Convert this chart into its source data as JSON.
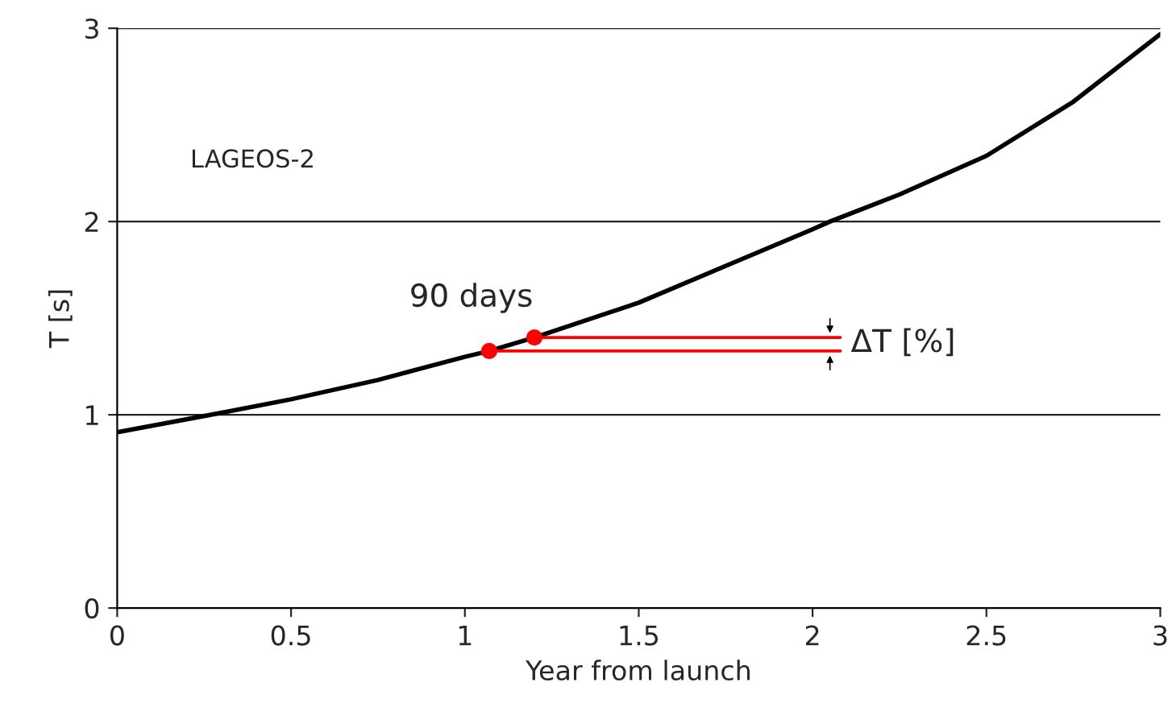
{
  "chart_data": {
    "type": "line",
    "xlabel": "Year from launch",
    "ylabel": "T [s]",
    "xlim": [
      0,
      3
    ],
    "ylim": [
      0,
      3
    ],
    "xticks": [
      0,
      0.5,
      1,
      1.5,
      2,
      2.5,
      3
    ],
    "yticks": [
      0,
      1,
      2,
      3
    ],
    "grid": "y",
    "series": [
      {
        "color": "#000000",
        "x": [
          0,
          0.27,
          0.5,
          0.75,
          1.0,
          1.07,
          1.2,
          1.5,
          1.75,
          2.0,
          2.05,
          2.25,
          2.5,
          2.75,
          3.0
        ],
        "values": [
          0.91,
          1.0,
          1.08,
          1.18,
          1.3,
          1.33,
          1.4,
          1.58,
          1.77,
          1.96,
          2.0,
          2.14,
          2.34,
          2.62,
          2.97
        ]
      },
      {
        "color": "#ff0000",
        "x": [
          1.07,
          2.08
        ],
        "values": [
          1.33,
          1.33
        ]
      },
      {
        "color": "#ff0000",
        "x": [
          1.2,
          2.08
        ],
        "values": [
          1.4,
          1.4
        ]
      },
      {
        "type": "scatter",
        "color": "#ff0000",
        "x": [
          1.07,
          1.2
        ],
        "values": [
          1.33,
          1.4
        ]
      }
    ],
    "annotations": [
      "LAGEOS-2",
      "90 days",
      {
        "text": "ΔT [%]",
        "x": 2.05,
        "y": 1.37
      }
    ]
  }
}
